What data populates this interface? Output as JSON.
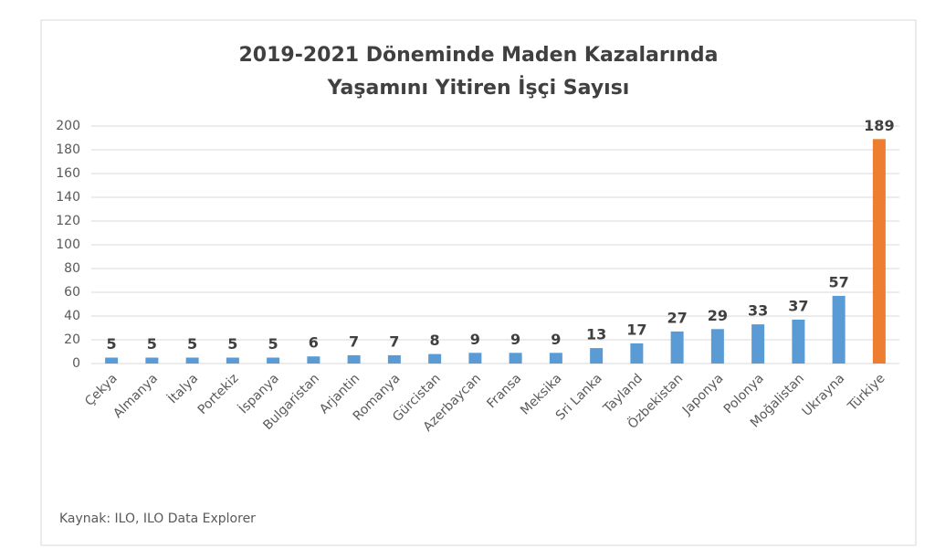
{
  "chart_data": {
    "type": "bar",
    "title": [
      "2019-2021 Döneminde Maden Kazalarında",
      "Yaşamını Yitiren İşçi Sayısı"
    ],
    "categories": [
      "Çekya",
      "Almanya",
      "İtalya",
      "Portekiz",
      "İspanya",
      "Bulgaristan",
      "Arjantin",
      "Romanya",
      "Gürcistan",
      "Azerbaycan",
      "Fransa",
      "Meksika",
      "Sri Lanka",
      "Tayland",
      "Özbekistan",
      "Japonya",
      "Polonya",
      "Moğalistan",
      "Ukrayna",
      "Türkiye"
    ],
    "values": [
      5,
      5,
      5,
      5,
      5,
      6,
      7,
      7,
      8,
      9,
      9,
      9,
      13,
      17,
      27,
      29,
      33,
      37,
      57,
      189
    ],
    "colors": [
      "#5b9bd5",
      "#5b9bd5",
      "#5b9bd5",
      "#5b9bd5",
      "#5b9bd5",
      "#5b9bd5",
      "#5b9bd5",
      "#5b9bd5",
      "#5b9bd5",
      "#5b9bd5",
      "#5b9bd5",
      "#5b9bd5",
      "#5b9bd5",
      "#5b9bd5",
      "#5b9bd5",
      "#5b9bd5",
      "#5b9bd5",
      "#5b9bd5",
      "#5b9bd5",
      "#ed7d31"
    ],
    "ylim": [
      0,
      200
    ],
    "yticks": [
      0,
      20,
      40,
      60,
      80,
      100,
      120,
      140,
      160,
      180,
      200
    ],
    "grid": true,
    "source": "Kaynak: ILO, ILO Data Explorer"
  }
}
